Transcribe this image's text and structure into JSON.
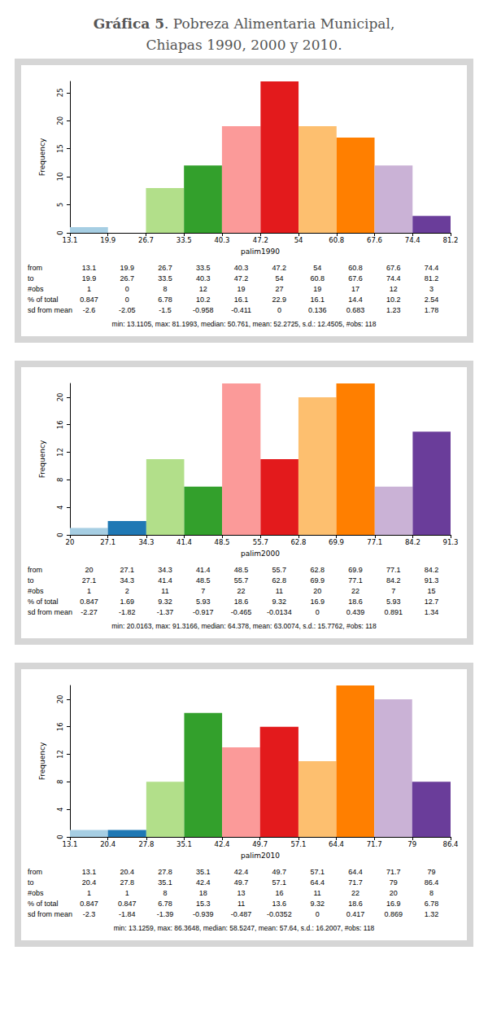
{
  "title": "Gráfica 5. Pobreza Alimentaria Municipal, Chiapas 1990, 2000 y 2010.",
  "chart_data": [
    {
      "type": "histogram",
      "x_label": "palim1990",
      "y_label": "Frequency",
      "bins": [
        13.1,
        19.9,
        26.7,
        33.5,
        40.3,
        47.2,
        54,
        60.8,
        67.6,
        74.4,
        81.2
      ],
      "counts": [
        1,
        0,
        8,
        12,
        19,
        27,
        19,
        17,
        12,
        3
      ],
      "colors": [
        "#a6cee3",
        "#1f78b4",
        "#b2df8a",
        "#33a02c",
        "#fb9a99",
        "#e31a1c",
        "#fdbf6f",
        "#ff7f00",
        "#cab2d6",
        "#6a3d9a"
      ],
      "xlim": [
        13.1,
        81.2
      ],
      "xticks": [
        13.1,
        19.9,
        26.7,
        33.5,
        40.3,
        47.2,
        54,
        60.8,
        67.6,
        74.4,
        81.2
      ],
      "ylim": [
        0,
        27
      ],
      "yticks": [
        0,
        5,
        10,
        15,
        20,
        25
      ],
      "grid": false,
      "table": {
        "row_labels": [
          "from",
          "to",
          "#obs",
          "% of total",
          "sd from mean"
        ],
        "percent_of_total": [
          0.847,
          0,
          6.78,
          10.2,
          16.1,
          22.9,
          16.1,
          14.4,
          10.2,
          2.54
        ],
        "sd_from_mean": [
          -2.6,
          -2.05,
          -1.5,
          -0.958,
          -0.411,
          0,
          0.136,
          0.683,
          1.23,
          1.78
        ]
      },
      "summary": "min: 13.1105, max: 81.1993, median: 50.761, mean: 52.2725, s.d.: 12.4505, #obs: 118"
    },
    {
      "type": "histogram",
      "x_label": "palim2000",
      "y_label": "Frequency",
      "bins": [
        20,
        27.1,
        34.3,
        41.4,
        48.5,
        55.7,
        62.8,
        69.9,
        77.1,
        84.2,
        91.3
      ],
      "counts": [
        1,
        2,
        11,
        7,
        22,
        11,
        20,
        22,
        7,
        15
      ],
      "colors": [
        "#a6cee3",
        "#1f78b4",
        "#b2df8a",
        "#33a02c",
        "#fb9a99",
        "#e31a1c",
        "#fdbf6f",
        "#ff7f00",
        "#cab2d6",
        "#6a3d9a"
      ],
      "xlim": [
        20,
        91.3
      ],
      "xticks": [
        20,
        27.1,
        34.3,
        41.4,
        48.5,
        55.7,
        62.8,
        69.9,
        77.1,
        84.2,
        91.3
      ],
      "ylim": [
        0,
        22
      ],
      "yticks": [
        0,
        4,
        8,
        12,
        16,
        20
      ],
      "grid": false,
      "table": {
        "row_labels": [
          "from",
          "to",
          "#obs",
          "% of total",
          "sd from mean"
        ],
        "percent_of_total": [
          0.847,
          1.69,
          9.32,
          5.93,
          18.6,
          9.32,
          16.9,
          18.6,
          5.93,
          12.7
        ],
        "sd_from_mean": [
          -2.27,
          -1.82,
          -1.37,
          -0.917,
          -0.465,
          -0.0134,
          0,
          0.439,
          0.891,
          1.34
        ]
      },
      "summary": "min: 20.0163, max: 91.3166, median: 64.378, mean: 63.0074, s.d.: 15.7762, #obs: 118"
    },
    {
      "type": "histogram",
      "x_label": "palim2010",
      "y_label": "Frequency",
      "bins": [
        13.1,
        20.4,
        27.8,
        35.1,
        42.4,
        49.7,
        57.1,
        64.4,
        71.7,
        79,
        86.4
      ],
      "counts": [
        1,
        1,
        8,
        18,
        13,
        16,
        11,
        22,
        20,
        8
      ],
      "colors": [
        "#a6cee3",
        "#1f78b4",
        "#b2df8a",
        "#33a02c",
        "#fb9a99",
        "#e31a1c",
        "#fdbf6f",
        "#ff7f00",
        "#cab2d6",
        "#6a3d9a"
      ],
      "xlim": [
        13.1,
        86.4
      ],
      "xticks": [
        13.1,
        20.4,
        27.8,
        35.1,
        42.4,
        49.7,
        57.1,
        64.4,
        71.7,
        79,
        86.4
      ],
      "ylim": [
        0,
        22
      ],
      "yticks": [
        0,
        4,
        8,
        12,
        16,
        20
      ],
      "grid": false,
      "table": {
        "row_labels": [
          "from",
          "to",
          "#obs",
          "% of total",
          "sd from mean"
        ],
        "percent_of_total": [
          0.847,
          0.847,
          6.78,
          15.3,
          11,
          13.6,
          9.32,
          18.6,
          16.9,
          6.78
        ],
        "sd_from_mean": [
          -2.3,
          -1.84,
          -1.39,
          -0.939,
          -0.487,
          -0.0352,
          0,
          0.417,
          0.869,
          1.32
        ]
      },
      "summary": "min: 13.1259, max: 86.3648, median: 58.5247, mean: 57.64, s.d.: 16.2007, #obs: 118"
    }
  ]
}
